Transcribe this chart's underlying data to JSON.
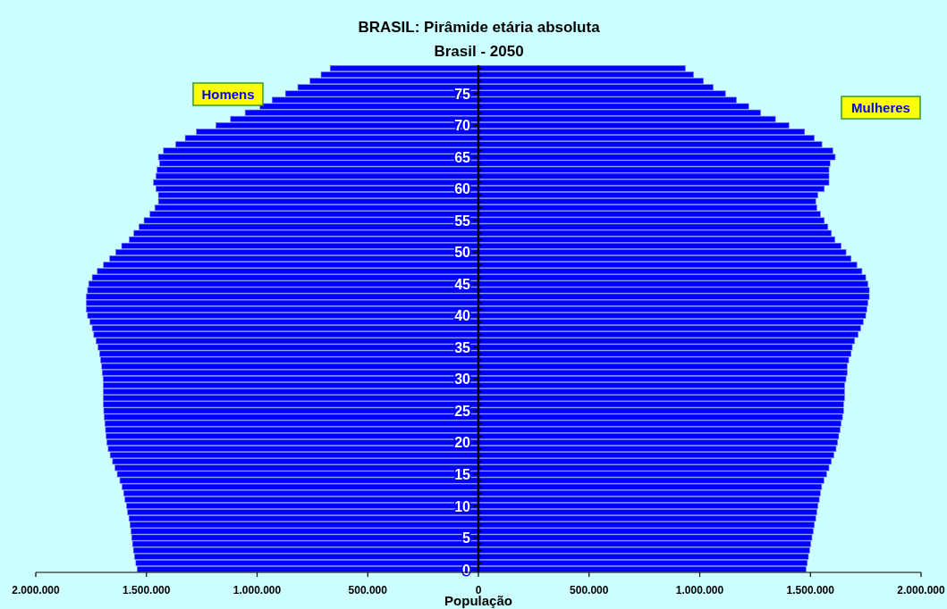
{
  "chart_data": {
    "type": "bar",
    "orientation": "horizontal",
    "title": "BRASIL: Pirâmide etária absoluta",
    "subtitle": "Brasil - 2050",
    "xlabel": "População",
    "categories": [
      null,
      null,
      null,
      null,
      "75",
      null,
      null,
      null,
      null,
      "70",
      null,
      null,
      null,
      null,
      "65",
      null,
      null,
      null,
      null,
      "60",
      null,
      null,
      null,
      null,
      "55",
      null,
      null,
      null,
      null,
      "50",
      null,
      null,
      null,
      null,
      "45",
      null,
      null,
      null,
      null,
      "40",
      null,
      null,
      null,
      null,
      "35",
      null,
      null,
      null,
      null,
      "30",
      null,
      null,
      null,
      null,
      "25",
      null,
      null,
      null,
      null,
      "20",
      null,
      null,
      null,
      null,
      "15",
      null,
      null,
      null,
      null,
      "10",
      null,
      null,
      null,
      null,
      "5",
      null,
      null,
      null,
      null,
      "0"
    ],
    "series": [
      {
        "name": "Homens",
        "color": "#0000ff",
        "values": [
          -670000,
          -711000,
          -761000,
          -816000,
          -872000,
          -932000,
          -987000,
          -1054000,
          -1120000,
          -1186000,
          -1274000,
          -1325000,
          -1368000,
          -1423000,
          -1446000,
          -1441000,
          -1452000,
          -1457000,
          -1468000,
          -1457000,
          -1446000,
          -1446000,
          -1462000,
          -1484000,
          -1511000,
          -1534000,
          -1557000,
          -1578000,
          -1612000,
          -1639000,
          -1666000,
          -1694000,
          -1722000,
          -1745000,
          -1761000,
          -1766000,
          -1772000,
          -1772000,
          -1772000,
          -1766000,
          -1755000,
          -1745000,
          -1738000,
          -1728000,
          -1719000,
          -1712000,
          -1707000,
          -1702000,
          -1700000,
          -1696000,
          -1695000,
          -1695000,
          -1695000,
          -1695000,
          -1693000,
          -1691000,
          -1688000,
          -1685000,
          -1682000,
          -1679000,
          -1673000,
          -1664000,
          -1653000,
          -1642000,
          -1632000,
          -1620000,
          -1610000,
          -1603000,
          -1597000,
          -1590000,
          -1585000,
          -1579000,
          -1574000,
          -1570000,
          -1567000,
          -1563000,
          -1559000,
          -1554000,
          -1548000,
          -1542000
        ]
      },
      {
        "name": "Mulheres",
        "color": "#0000ff",
        "values": [
          935000,
          972000,
          1017000,
          1061000,
          1116000,
          1166000,
          1221000,
          1275000,
          1342000,
          1403000,
          1474000,
          1518000,
          1552000,
          1601000,
          1612000,
          1589000,
          1584000,
          1584000,
          1584000,
          1563000,
          1534000,
          1524000,
          1529000,
          1545000,
          1563000,
          1579000,
          1595000,
          1611000,
          1639000,
          1661000,
          1684000,
          1710000,
          1733000,
          1750000,
          1760000,
          1766000,
          1766000,
          1760000,
          1755000,
          1750000,
          1739000,
          1727000,
          1716000,
          1700000,
          1689000,
          1684000,
          1673000,
          1666000,
          1666000,
          1661000,
          1655000,
          1655000,
          1655000,
          1650000,
          1650000,
          1645000,
          1639000,
          1634000,
          1628000,
          1623000,
          1616000,
          1606000,
          1595000,
          1584000,
          1573000,
          1561000,
          1551000,
          1545000,
          1540000,
          1534000,
          1529000,
          1524000,
          1518000,
          1513000,
          1507000,
          1502000,
          1497000,
          1491000,
          1486000,
          1480000
        ]
      }
    ],
    "xlim": [
      -2000000,
      2000000
    ],
    "xticks": [
      {
        "value": -2000000,
        "label": "2.000.000"
      },
      {
        "value": -1500000,
        "label": "1.500.000"
      },
      {
        "value": -1000000,
        "label": "1.000.000"
      },
      {
        "value": -500000,
        "label": "500.000"
      },
      0,
      {
        "value": 500000,
        "label": "500.000"
      },
      {
        "value": 1000000,
        "label": "1.000.000"
      },
      {
        "value": 1500000,
        "label": "1.500.000"
      },
      {
        "value": 2000000,
        "label": "2.000.000"
      }
    ],
    "stacked": true,
    "grid": false
  }
}
